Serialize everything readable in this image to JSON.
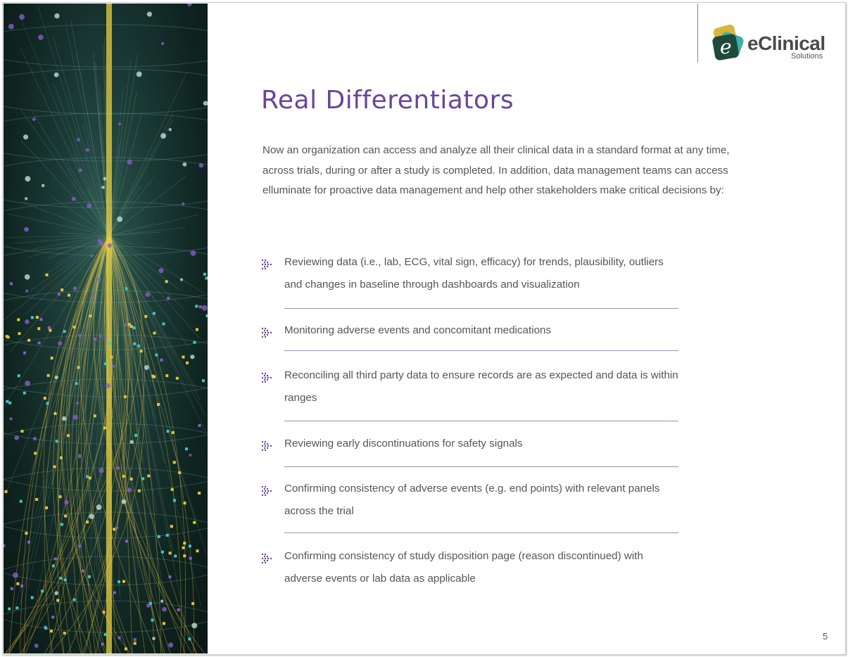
{
  "logo": {
    "brand": "eClinical",
    "sub": "Solutions",
    "letter": "e"
  },
  "title": "Real Differentiators",
  "intro": "Now an organization can access and analyze all their clinical data in a standard format at any time, across trials, during or after a study is completed. In addition, data management teams can access elluminate for proactive data management and help other stakeholders make critical decisions by:",
  "items": [
    {
      "text": "Reviewing data (i.e., lab, ECG, vital sign, efficacy) for trends, plausibility, outliers and changes in baseline through dashboards and visualization"
    },
    {
      "text": "Monitoring adverse events and concomitant medications"
    },
    {
      "text": "Reconciling all third party data to ensure records are as expected and data is within ranges"
    },
    {
      "text": "Reviewing early discontinuations for safety signals"
    },
    {
      "text": "Confirming consistency of adverse events (e.g. end points) with relevant panels across the trial"
    },
    {
      "text": "Confirming consistency of study disposition page (reason discontinued) with adverse events or lab data as applicable"
    }
  ],
  "bullet_icon": "dotted-arrow-icon",
  "colors": {
    "title": "#6a4596",
    "bullet": "#6a4596",
    "divider": "#9a8cc0"
  },
  "page_number": "5"
}
